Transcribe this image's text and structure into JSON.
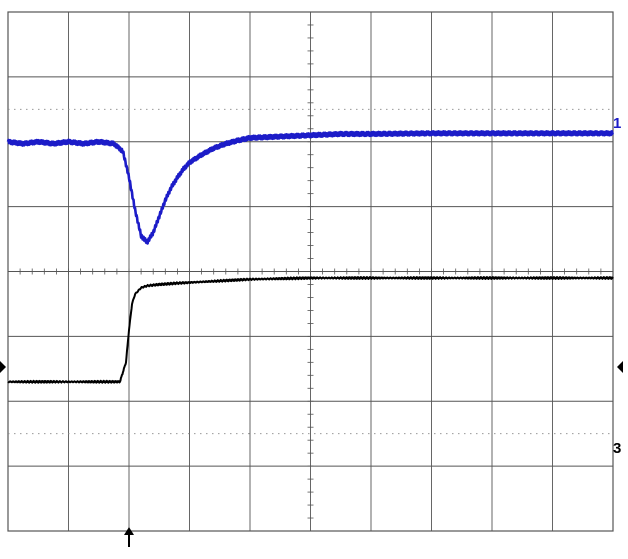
{
  "chart_data": {
    "type": "line",
    "title": "",
    "xlabel": "",
    "ylabel": "",
    "grid": true,
    "xlim": [
      0,
      10
    ],
    "ylim": [
      -4,
      4
    ],
    "series": [
      {
        "name": "1",
        "color": "#1c1cc8",
        "x": [
          0,
          0.25,
          0.5,
          0.75,
          1.0,
          1.25,
          1.5,
          1.75,
          1.9,
          2.0,
          2.1,
          2.2,
          2.3,
          2.4,
          2.5,
          2.6,
          2.7,
          2.8,
          2.9,
          3.0,
          3.2,
          3.4,
          3.6,
          3.8,
          4.0,
          4.5,
          5.0,
          5.5,
          6.0,
          7.0,
          8.0,
          9.0,
          10.0
        ],
        "y": [
          2.0,
          1.97,
          2.0,
          1.97,
          2.0,
          1.97,
          2.0,
          1.97,
          1.85,
          1.45,
          0.95,
          0.55,
          0.45,
          0.6,
          0.85,
          1.1,
          1.3,
          1.45,
          1.58,
          1.68,
          1.8,
          1.9,
          1.97,
          2.02,
          2.06,
          2.08,
          2.1,
          2.12,
          2.12,
          2.13,
          2.13,
          2.13,
          2.13
        ]
      },
      {
        "name": "3",
        "color": "#000000",
        "x": [
          0,
          0.5,
          1.0,
          1.5,
          1.85,
          1.95,
          2.0,
          2.05,
          2.1,
          2.2,
          2.3,
          2.5,
          2.8,
          3.2,
          4.0,
          5.0,
          6.0,
          7.0,
          8.0,
          9.0,
          10.0
        ],
        "y": [
          -1.7,
          -1.7,
          -1.7,
          -1.7,
          -1.7,
          -1.4,
          -0.9,
          -0.5,
          -0.35,
          -0.25,
          -0.22,
          -0.2,
          -0.18,
          -0.16,
          -0.12,
          -0.1,
          -0.1,
          -0.1,
          -0.1,
          -0.1,
          -0.1
        ]
      }
    ],
    "markers": {
      "channel_1_label": "1",
      "channel_3_label": "3",
      "trigger_arrow": "↑"
    }
  }
}
